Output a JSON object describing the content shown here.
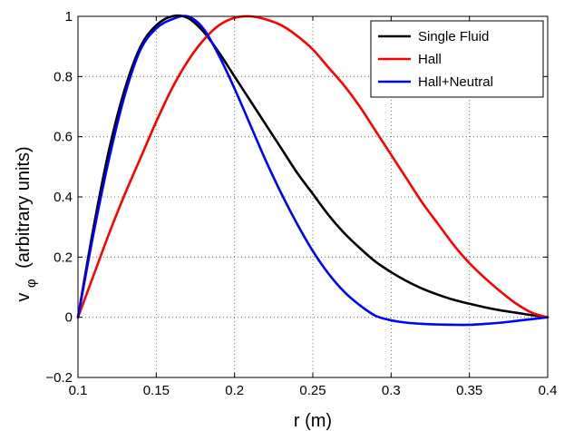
{
  "chart_data": {
    "type": "line",
    "title": "",
    "xlabel": "r (m)",
    "ylabel_main": "v",
    "ylabel_sub": "φ",
    "ylabel_rest": "(arbitrary units)",
    "xlim": [
      0.1,
      0.4
    ],
    "ylim": [
      -0.2,
      1
    ],
    "xticks": [
      0.1,
      0.15,
      0.2,
      0.25,
      0.3,
      0.35,
      0.4
    ],
    "xtick_labels": [
      "0.1",
      "0.15",
      "0.2",
      "0.25",
      "0.3",
      "0.35",
      "0.4"
    ],
    "yticks": [
      -0.2,
      0,
      0.2,
      0.4,
      0.6,
      0.8,
      1
    ],
    "ytick_labels": [
      "−0.2",
      "0",
      "0.2",
      "0.4",
      "0.6",
      "0.8",
      "1"
    ],
    "grid": true,
    "legend_position": "top-right",
    "series": [
      {
        "name": "Single Fluid",
        "color": "#000000",
        "x": [
          0.1,
          0.11,
          0.12,
          0.13,
          0.14,
          0.15,
          0.16,
          0.17,
          0.18,
          0.19,
          0.2,
          0.21,
          0.22,
          0.23,
          0.24,
          0.25,
          0.26,
          0.27,
          0.28,
          0.29,
          0.3,
          0.31,
          0.32,
          0.33,
          0.34,
          0.35,
          0.36,
          0.37,
          0.38,
          0.39,
          0.4
        ],
        "y": [
          0.0,
          0.3,
          0.56,
          0.76,
          0.9,
          0.97,
          1.0,
          0.995,
          0.95,
          0.88,
          0.8,
          0.72,
          0.64,
          0.56,
          0.48,
          0.41,
          0.34,
          0.28,
          0.23,
          0.185,
          0.15,
          0.12,
          0.095,
          0.075,
          0.058,
          0.045,
          0.033,
          0.023,
          0.015,
          0.007,
          0.0
        ]
      },
      {
        "name": "Hall",
        "color": "#ff0000",
        "x": [
          0.1,
          0.11,
          0.12,
          0.13,
          0.14,
          0.15,
          0.16,
          0.17,
          0.18,
          0.19,
          0.2,
          0.21,
          0.22,
          0.23,
          0.24,
          0.25,
          0.26,
          0.27,
          0.28,
          0.29,
          0.3,
          0.31,
          0.32,
          0.33,
          0.34,
          0.35,
          0.36,
          0.37,
          0.38,
          0.39,
          0.4
        ],
        "y": [
          0.0,
          0.14,
          0.28,
          0.41,
          0.53,
          0.65,
          0.76,
          0.85,
          0.92,
          0.97,
          0.995,
          1.0,
          0.99,
          0.97,
          0.935,
          0.89,
          0.83,
          0.77,
          0.7,
          0.62,
          0.54,
          0.46,
          0.38,
          0.31,
          0.24,
          0.18,
          0.13,
          0.085,
          0.045,
          0.015,
          0.0
        ]
      },
      {
        "name": "Hall+Neutral",
        "color": "#0000ff",
        "x": [
          0.1,
          0.11,
          0.12,
          0.13,
          0.14,
          0.15,
          0.16,
          0.17,
          0.18,
          0.19,
          0.2,
          0.21,
          0.22,
          0.23,
          0.24,
          0.25,
          0.26,
          0.27,
          0.28,
          0.29,
          0.3,
          0.31,
          0.32,
          0.33,
          0.34,
          0.35,
          0.36,
          0.37,
          0.38,
          0.39,
          0.4
        ],
        "y": [
          0.0,
          0.28,
          0.53,
          0.74,
          0.89,
          0.96,
          0.99,
          1.0,
          0.96,
          0.87,
          0.76,
          0.64,
          0.52,
          0.41,
          0.31,
          0.22,
          0.145,
          0.085,
          0.04,
          0.005,
          -0.01,
          -0.018,
          -0.022,
          -0.024,
          -0.025,
          -0.025,
          -0.022,
          -0.018,
          -0.012,
          -0.006,
          0.0
        ]
      }
    ]
  }
}
